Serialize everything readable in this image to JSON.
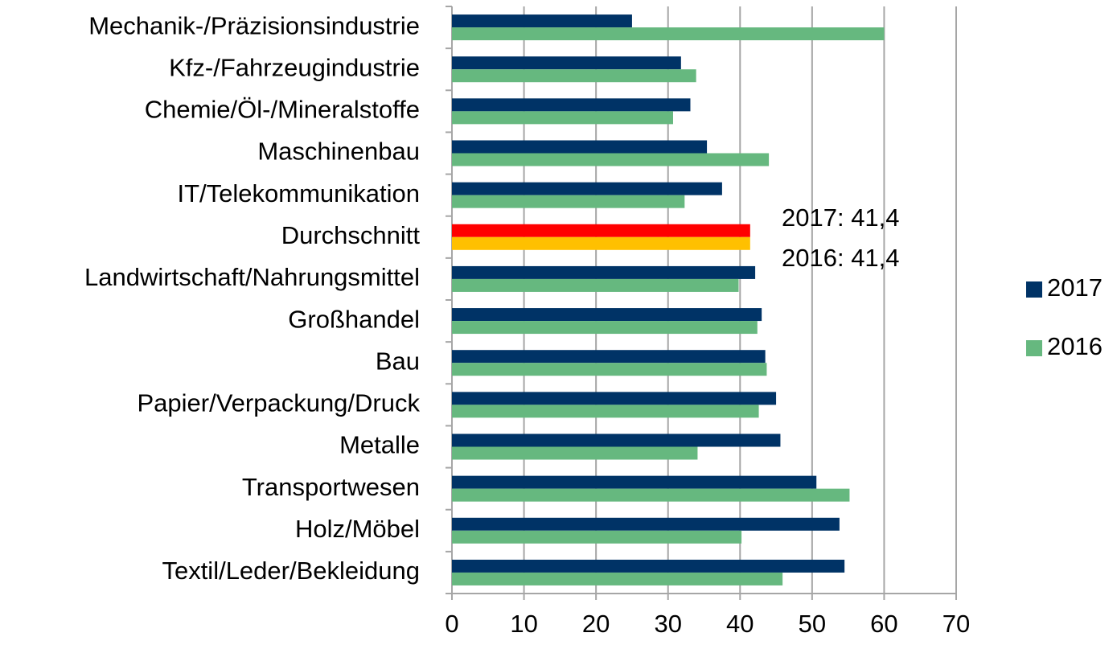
{
  "chart_data": {
    "type": "hbar",
    "categories": [
      "Mechanik-/Präzisionsindustrie",
      "Kfz-/Fahrzeugindustrie",
      "Chemie/Öl-/Mineralstoffe",
      "Maschinenbau",
      "IT/Telekommunikation",
      "Durchschnitt",
      "Landwirtschaft/Nahrungsmittel",
      "Großhandel",
      "Bau",
      "Papier/Verpackung/Druck",
      "Metalle",
      "Transportwesen",
      "Holz/Möbel",
      "Textil/Leder/Bekleidung"
    ],
    "series": [
      {
        "name": "2017",
        "color": "#003366",
        "highlight_color": "#ff0000",
        "values": [
          25,
          31.8,
          33.1,
          35.4,
          37.5,
          41.4,
          42.1,
          43,
          43.5,
          45,
          45.6,
          50.6,
          53.8,
          54.5
        ]
      },
      {
        "name": "2016",
        "color": "#66b87f",
        "highlight_color": "#ffc000",
        "values": [
          60,
          33.9,
          30.7,
          44,
          32.3,
          41.4,
          39.8,
          42.4,
          43.7,
          42.6,
          34.1,
          55.2,
          40.2,
          45.9
        ]
      }
    ],
    "highlight_index": 5,
    "annotations": [
      "2017: 41,4",
      "2016: 41,4"
    ],
    "xlim": [
      0,
      70
    ],
    "xticks": [
      0,
      10,
      20,
      30,
      40,
      50,
      60,
      70
    ],
    "grid": true,
    "legend": "right"
  }
}
